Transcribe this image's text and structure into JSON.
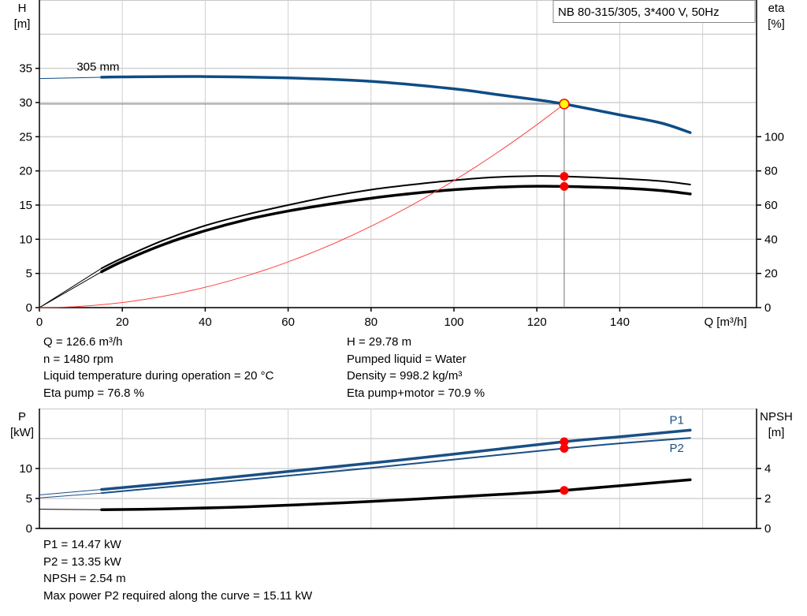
{
  "colors": {
    "head_curve": "#0e4c85",
    "power_curve": "#1a4f85",
    "eta_curve": "#000000",
    "npsh_curve": "#000000",
    "system_curve": "#ff4040",
    "duty_point_fill": "#ffff00",
    "duty_point_stroke": "#ff0000",
    "marker": "#ff0000",
    "grid": "#d0d0d0"
  },
  "chart_data": [
    {
      "type": "line",
      "title": "NB 80-315/305, 3*400 V, 50Hz",
      "xlabel": "Q [m³/h]",
      "ylabel_left": [
        "H",
        "[m]"
      ],
      "ylabel_right": [
        "eta",
        "[%]"
      ],
      "xlim": [
        0,
        173
      ],
      "ylim_left": [
        0,
        45
      ],
      "ylim_right": [
        0,
        180
      ],
      "xticks": [
        "0",
        "20",
        "40",
        "60",
        "80",
        "100",
        "120",
        "140"
      ],
      "yticks_left": [
        "0",
        "5",
        "10",
        "15",
        "20",
        "25",
        "30",
        "35"
      ],
      "yticks_right": [
        "0",
        "20",
        "40",
        "60",
        "80",
        "100"
      ],
      "grid": true,
      "curve_label": "305 mm",
      "series": [
        {
          "key": "head",
          "axis": "left",
          "x": [
            15,
            20,
            40,
            60,
            80,
            100,
            110,
            120,
            126.6,
            140,
            150,
            157
          ],
          "y": [
            33.7,
            33.75,
            33.8,
            33.6,
            33.1,
            32.0,
            31.2,
            30.4,
            29.78,
            28.2,
            27.0,
            25.6
          ],
          "ext_x": [
            0,
            15
          ],
          "ext_y": [
            33.5,
            33.7
          ]
        },
        {
          "key": "eta_pump",
          "axis": "right",
          "x": [
            15,
            20,
            30,
            40,
            50,
            60,
            70,
            80,
            90,
            100,
            110,
            120,
            126.6,
            140,
            150,
            157
          ],
          "y": [
            23,
            29,
            39.5,
            48,
            54.5,
            60,
            65,
            69,
            72,
            74.5,
            76.3,
            77,
            76.8,
            75.5,
            74,
            72
          ],
          "ext_x": [
            0,
            15
          ],
          "ext_y": [
            0,
            23
          ]
        },
        {
          "key": "eta_total",
          "axis": "right",
          "x": [
            15,
            20,
            30,
            40,
            50,
            60,
            70,
            80,
            90,
            100,
            110,
            120,
            126.6,
            140,
            150,
            157
          ],
          "y": [
            21,
            27,
            37,
            45,
            51.5,
            56.5,
            60.5,
            64,
            66.8,
            69,
            70.4,
            71,
            70.9,
            70,
            68.5,
            66.5
          ],
          "ext_x": [
            0,
            15
          ],
          "ext_y": [
            0,
            21
          ]
        },
        {
          "key": "system",
          "axis": "left",
          "type": "parabola",
          "x_end": 126.6,
          "y_end": 29.78
        }
      ],
      "duty_point": {
        "x": 126.6,
        "y": 29.78
      },
      "markers": [
        {
          "x": 126.6,
          "y": 76.8,
          "axis": "right"
        },
        {
          "x": 126.6,
          "y": 70.9,
          "axis": "right"
        }
      ]
    },
    {
      "type": "line",
      "ylabel_left": [
        "P",
        "[kW]"
      ],
      "ylabel_right": [
        "NPSH",
        "[m]"
      ],
      "xlim": [
        0,
        173
      ],
      "ylim_left": [
        0,
        20
      ],
      "ylim_right": [
        0,
        8
      ],
      "yticks_left": [
        "0",
        "5",
        "10"
      ],
      "yticks_right": [
        "0",
        "2",
        "4"
      ],
      "grid": true,
      "series": [
        {
          "key": "P1",
          "name": "P1",
          "axis": "left",
          "x": [
            15,
            40,
            60,
            80,
            100,
            126.6,
            140,
            157
          ],
          "y": [
            6.5,
            8.1,
            9.5,
            10.9,
            12.4,
            14.47,
            15.3,
            16.4
          ],
          "ext_x": [
            0,
            15
          ],
          "ext_y": [
            5.6,
            6.5
          ]
        },
        {
          "key": "P2",
          "name": "P2",
          "axis": "left",
          "x": [
            15,
            40,
            60,
            80,
            100,
            126.6,
            140,
            157
          ],
          "y": [
            5.9,
            7.5,
            8.8,
            10.1,
            11.5,
            13.35,
            14.2,
            15.1
          ],
          "ext_x": [
            0,
            15
          ],
          "ext_y": [
            5.1,
            5.9
          ]
        },
        {
          "key": "NPSH",
          "axis": "right",
          "x": [
            15,
            30,
            45,
            60,
            80,
            100,
            115,
            126.6,
            140,
            157
          ],
          "y": [
            1.25,
            1.3,
            1.4,
            1.55,
            1.8,
            2.1,
            2.33,
            2.54,
            2.85,
            3.25
          ],
          "ext_x": [
            0,
            15
          ],
          "ext_y": [
            1.28,
            1.25
          ]
        }
      ],
      "markers": [
        {
          "x": 126.6,
          "y": 14.47,
          "axis": "left"
        },
        {
          "x": 126.6,
          "y": 13.35,
          "axis": "left"
        },
        {
          "x": 126.6,
          "y": 2.54,
          "axis": "right"
        }
      ]
    }
  ],
  "info_top_left": [
    "Q = 126.6 m³/h",
    "n = 1480 rpm",
    "Liquid temperature during operation = 20 °C",
    "Eta pump = 76.8 %"
  ],
  "info_top_right": [
    "H = 29.78 m",
    "Pumped liquid = Water",
    "Density = 998.2 kg/m³",
    "Eta pump+motor = 70.9 %"
  ],
  "info_bottom": [
    "P1 = 14.47 kW",
    "P2 = 13.35 kW",
    "NPSH = 2.54 m",
    "Max power P2 required along the curve = 15.11 kW"
  ]
}
